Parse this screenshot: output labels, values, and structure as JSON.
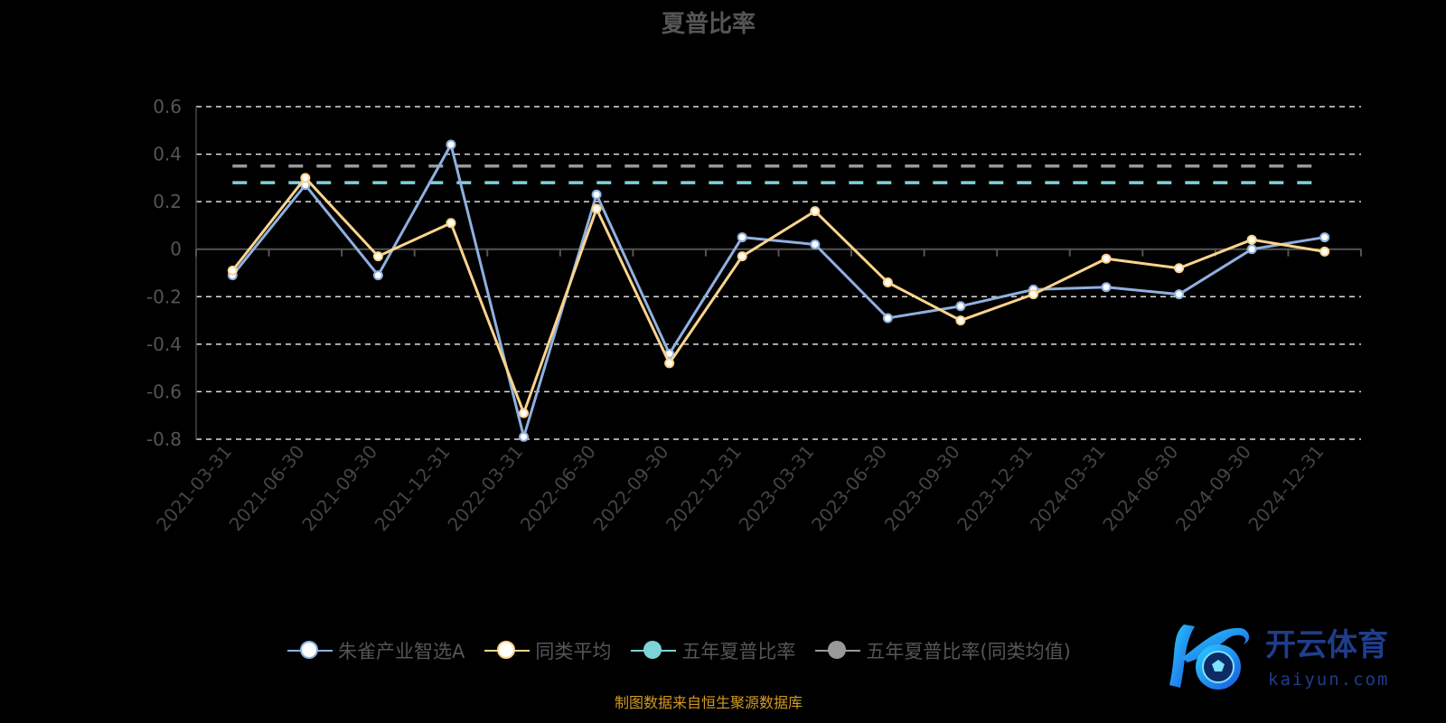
{
  "chart_data": {
    "type": "line",
    "title": "夏普比率",
    "categories": [
      "2021-03-31",
      "2021-06-30",
      "2021-09-30",
      "2021-12-31",
      "2022-03-31",
      "2022-06-30",
      "2022-09-30",
      "2022-12-31",
      "2023-03-31",
      "2023-06-30",
      "2023-09-30",
      "2023-12-31",
      "2024-03-31",
      "2024-06-30",
      "2024-09-30",
      "2024-12-31"
    ],
    "ylim": [
      -0.8,
      0.6
    ],
    "yticks": [
      "0.6",
      "0.4",
      "0.2",
      "0",
      "-0.2",
      "-0.4",
      "-0.6",
      "-0.8"
    ],
    "grid": true,
    "legend_position": "bottom",
    "series": [
      {
        "name": "朱雀产业智选A",
        "color": "#8fb0e0",
        "values": [
          -0.11,
          0.27,
          -0.11,
          0.44,
          -0.79,
          0.23,
          -0.44,
          0.05,
          0.02,
          -0.29,
          -0.24,
          -0.17,
          -0.16,
          -0.19,
          0.0,
          0.05
        ]
      },
      {
        "name": "同类平均",
        "color": "#fcd48c",
        "values": [
          -0.09,
          0.3,
          -0.03,
          0.11,
          -0.69,
          0.17,
          -0.48,
          -0.03,
          0.16,
          -0.14,
          -0.3,
          -0.19,
          -0.04,
          -0.08,
          0.04,
          -0.01
        ]
      },
      {
        "name": "五年夏普比率",
        "color": "#7dd3d8",
        "constant": 0.28
      },
      {
        "name": "五年夏普比率(同类均值)",
        "color": "#999999",
        "constant": 0.35
      }
    ]
  },
  "source": "制图数据来自恒生聚源数据库",
  "logo": {
    "brand": "开云体育",
    "url_text": "kaiyun.com"
  }
}
